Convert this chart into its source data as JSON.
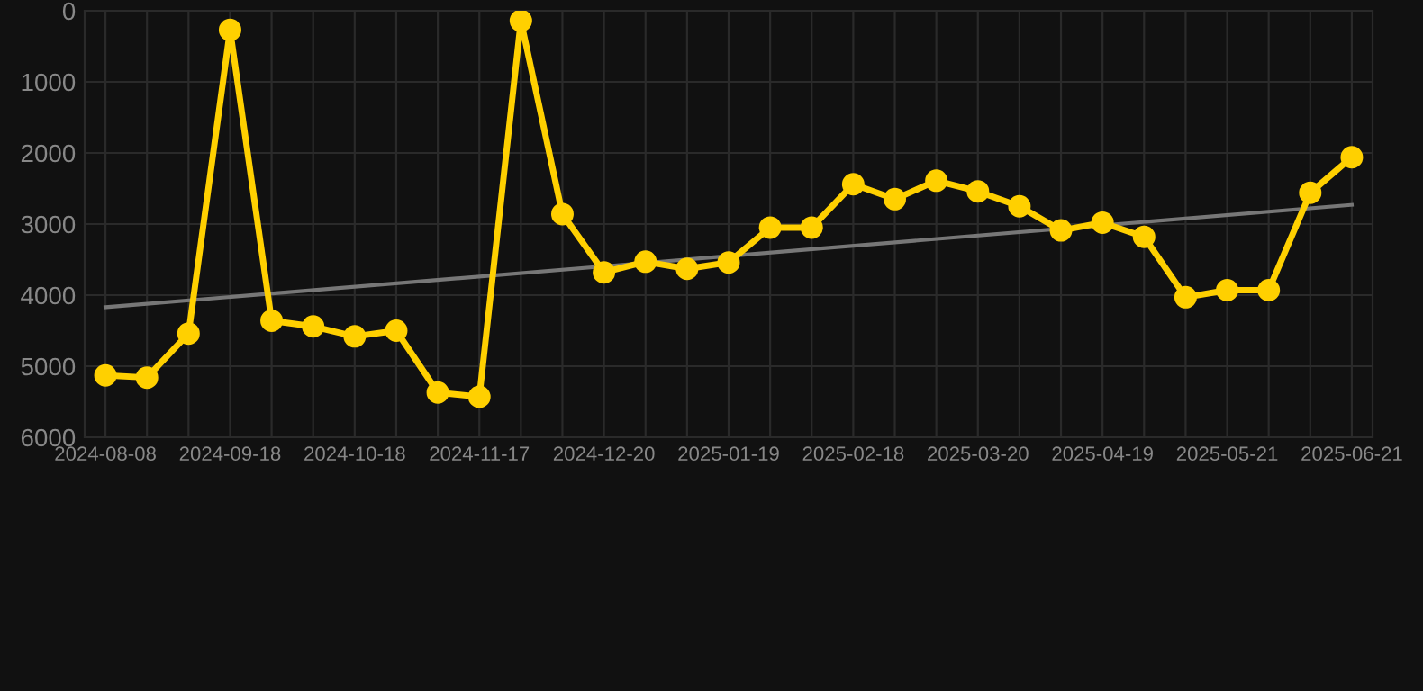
{
  "chart_data": {
    "type": "line",
    "categories": [
      "2024-08-08",
      null,
      null,
      "2024-09-18",
      null,
      null,
      "2024-10-18",
      null,
      null,
      "2024-11-17",
      null,
      null,
      "2024-12-20",
      null,
      null,
      "2025-01-19",
      null,
      null,
      "2025-02-18",
      null,
      null,
      "2025-03-20",
      null,
      null,
      "2025-04-19",
      null,
      null,
      "2025-05-21",
      null,
      null,
      "2025-06-21"
    ],
    "series": [
      {
        "color": "#ffd000",
        "marker": "circle",
        "values": [
          5130,
          5160,
          4540,
          270,
          4360,
          4440,
          4580,
          4500,
          5370,
          5430,
          140,
          2860,
          3680,
          3530,
          3630,
          3540,
          3050,
          3050,
          2440,
          2650,
          2390,
          2540,
          2750,
          3090,
          2980,
          3180,
          4030,
          3930,
          3930,
          2560,
          2060
        ]
      },
      {
        "color": "#777777",
        "marker": "none",
        "values": [
          4170,
          null,
          null,
          null,
          null,
          null,
          null,
          null,
          null,
          null,
          null,
          null,
          null,
          null,
          null,
          null,
          null,
          null,
          null,
          null,
          null,
          null,
          null,
          null,
          null,
          null,
          null,
          null,
          null,
          null,
          2730
        ]
      }
    ],
    "ylim": [
      6000,
      0
    ],
    "yticks": [
      0,
      1000,
      2000,
      3000,
      4000,
      5000,
      6000
    ],
    "grid": true,
    "line_style": "solid"
  }
}
